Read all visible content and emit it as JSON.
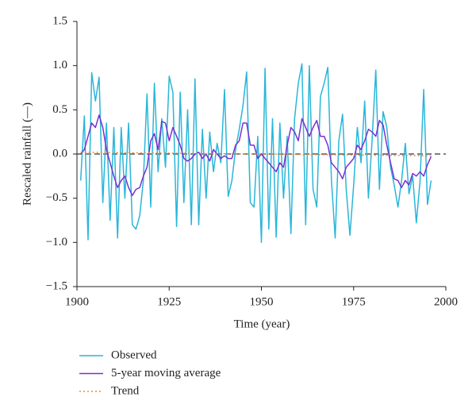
{
  "chart_data": {
    "type": "line",
    "y_label": "Rescaled rainfall (—)",
    "x_label": "Time (year)",
    "xlim": [
      1900,
      2000
    ],
    "xticks": [
      1900,
      1925,
      1950,
      1975,
      2000
    ],
    "ylim": [
      -1.5,
      1.5
    ],
    "yticks": [
      1.5,
      {
        "value": 1,
        "label": "1.0"
      },
      0.5,
      {
        "value": 0,
        "label": "0.0"
      },
      {
        "value": -0.5,
        "label": "−0.5"
      },
      {
        "value": -1,
        "label": "−1.0"
      },
      {
        "value": -1.5,
        "label": "−1.5"
      }
    ],
    "reference_y": 0,
    "legend": "bottom",
    "x": [
      1901,
      1902,
      1903,
      1904,
      1905,
      1906,
      1907,
      1908,
      1909,
      1910,
      1911,
      1912,
      1913,
      1914,
      1915,
      1916,
      1917,
      1918,
      1919,
      1920,
      1921,
      1922,
      1923,
      1924,
      1925,
      1926,
      1927,
      1928,
      1929,
      1930,
      1931,
      1932,
      1933,
      1934,
      1935,
      1936,
      1937,
      1938,
      1939,
      1940,
      1941,
      1942,
      1943,
      1944,
      1945,
      1946,
      1947,
      1948,
      1949,
      1950,
      1951,
      1952,
      1953,
      1954,
      1955,
      1956,
      1957,
      1958,
      1959,
      1960,
      1961,
      1962,
      1963,
      1964,
      1965,
      1966,
      1967,
      1968,
      1969,
      1970,
      1971,
      1972,
      1973,
      1974,
      1975,
      1976,
      1977,
      1978,
      1979,
      1980,
      1981,
      1982,
      1983,
      1984,
      1985,
      1986,
      1987,
      1988,
      1989,
      1990,
      1991,
      1992,
      1993,
      1994,
      1995,
      1996
    ],
    "series": [
      {
        "name": "Observed",
        "color": "#29b6d9",
        "dash": "none",
        "values": [
          -0.3,
          0.43,
          -0.97,
          0.92,
          0.6,
          0.87,
          -0.55,
          0.35,
          -0.75,
          0.3,
          -0.95,
          0.3,
          -0.5,
          0.35,
          -0.8,
          -0.85,
          -0.7,
          -0.3,
          0.68,
          -0.6,
          0.8,
          -0.2,
          0.4,
          -0.15,
          0.88,
          0.7,
          -0.82,
          0.7,
          -0.55,
          0.5,
          -0.8,
          0.85,
          -0.8,
          0.28,
          -0.5,
          0.25,
          -0.2,
          0.12,
          -0.1,
          0.73,
          -0.48,
          -0.3,
          0.05,
          0.28,
          0.55,
          0.93,
          -0.55,
          -0.6,
          0.2,
          -1.0,
          0.97,
          -0.85,
          0.4,
          -0.94,
          0.35,
          -0.5,
          0.2,
          -0.9,
          0.4,
          0.8,
          1.02,
          -0.8,
          1.0,
          -0.4,
          -0.6,
          0.65,
          0.8,
          0.98,
          -0.3,
          -0.95,
          0.15,
          0.45,
          -0.4,
          -0.92,
          -0.35,
          0.3,
          -0.1,
          0.6,
          -0.5,
          0.15,
          0.95,
          -0.4,
          0.48,
          0.3,
          -0.15,
          -0.35,
          -0.6,
          -0.3,
          0.12,
          -0.45,
          -0.25,
          -0.78,
          -0.3,
          0.73,
          -0.57,
          -0.3
        ]
      },
      {
        "name": "5-year moving average",
        "color": "#7b2fd0",
        "dash": "none",
        "values": [
          0.0,
          0.05,
          0.2,
          0.35,
          0.3,
          0.44,
          0.3,
          0.05,
          -0.1,
          -0.25,
          -0.38,
          -0.3,
          -0.25,
          -0.38,
          -0.47,
          -0.4,
          -0.38,
          -0.25,
          -0.15,
          0.15,
          0.23,
          0.05,
          0.37,
          0.35,
          0.15,
          0.3,
          0.2,
          0.1,
          -0.05,
          -0.08,
          -0.05,
          0.0,
          0.02,
          -0.05,
          0.0,
          -0.08,
          0.05,
          0.0,
          -0.05,
          -0.02,
          -0.05,
          -0.05,
          0.1,
          0.15,
          0.35,
          0.35,
          0.1,
          0.1,
          -0.05,
          0.0,
          -0.05,
          -0.1,
          -0.15,
          -0.2,
          -0.1,
          -0.15,
          0.1,
          0.3,
          0.25,
          0.15,
          0.4,
          0.3,
          0.2,
          0.3,
          0.38,
          0.2,
          0.2,
          0.1,
          -0.1,
          -0.15,
          -0.2,
          -0.28,
          -0.15,
          -0.1,
          -0.05,
          0.1,
          0.05,
          0.15,
          0.28,
          0.25,
          0.2,
          0.38,
          0.33,
          0.1,
          -0.1,
          -0.28,
          -0.3,
          -0.38,
          -0.3,
          -0.35,
          -0.22,
          -0.25,
          -0.2,
          -0.25,
          -0.12,
          -0.03
        ]
      },
      {
        "name": "Trend",
        "color": "#e8893a",
        "dash": "2 3",
        "x": [
          1901,
          1996
        ],
        "values": [
          0.02,
          -0.02
        ]
      }
    ]
  }
}
